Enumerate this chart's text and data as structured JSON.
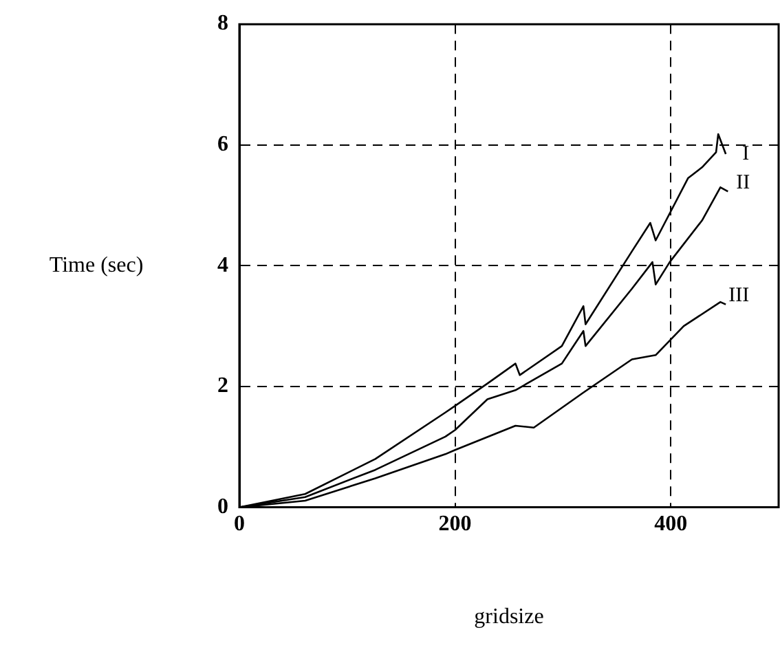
{
  "chart_data": {
    "type": "line",
    "xlabel": "gridsize",
    "ylabel": "Time (sec)",
    "xlim": [
      0,
      500
    ],
    "ylim": [
      0,
      8
    ],
    "xticks": [
      0,
      200,
      400
    ],
    "yticks": [
      0,
      2,
      4,
      6,
      8
    ],
    "grid": true,
    "legend": false,
    "marker": "none",
    "line_style": "solid",
    "series": [
      {
        "name": "I",
        "color": "#000000",
        "x": [
          0,
          61,
          126,
          191,
          200,
          230,
          256,
          260,
          299,
          319,
          321,
          364,
          381,
          386,
          416,
          429,
          442,
          444,
          451
        ],
        "values": [
          0,
          0.22,
          0.8,
          1.57,
          1.68,
          2.05,
          2.38,
          2.19,
          2.67,
          3.33,
          3.03,
          4.24,
          4.71,
          4.42,
          5.45,
          5.63,
          5.88,
          6.18,
          5.85
        ]
      },
      {
        "name": "II",
        "color": "#000000",
        "x": [
          0,
          61,
          126,
          191,
          200,
          230,
          256,
          299,
          319,
          321,
          364,
          383,
          386,
          399,
          429,
          446,
          453
        ],
        "values": [
          0,
          0.17,
          0.62,
          1.17,
          1.28,
          1.79,
          1.94,
          2.38,
          2.92,
          2.67,
          3.62,
          4.06,
          3.69,
          4.06,
          4.75,
          5.3,
          5.23
        ]
      },
      {
        "name": "III",
        "color": "#000000",
        "x": [
          0,
          61,
          126,
          191,
          200,
          256,
          273,
          319,
          364,
          386,
          412,
          446,
          451
        ],
        "values": [
          0,
          0.11,
          0.48,
          0.88,
          0.95,
          1.35,
          1.32,
          1.9,
          2.45,
          2.52,
          3.0,
          3.4,
          3.36
        ]
      }
    ]
  }
}
